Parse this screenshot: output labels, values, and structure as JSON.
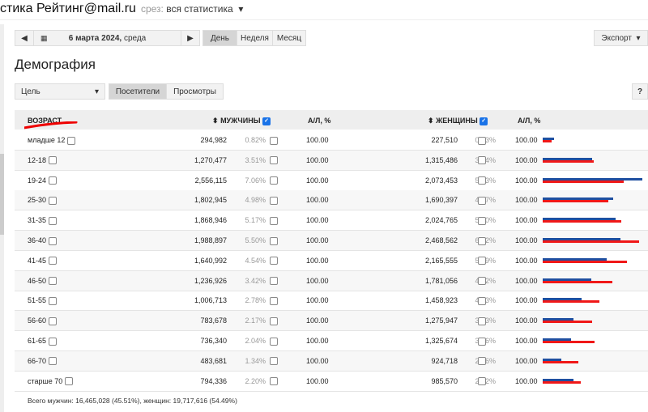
{
  "header": {
    "title": "стика Рейтинг@mail.ru",
    "slice_label": "срез:",
    "slice_value": "вся статистика",
    "slice_arrow": "▾"
  },
  "toolbar": {
    "prev": "◀",
    "date": "6 марта 2024,",
    "weekday": "среда",
    "next": "▶",
    "periods": [
      "День",
      "Неделя",
      "Месяц"
    ],
    "active_period": "День",
    "export": "Экспорт",
    "export_arrow": "▾"
  },
  "page_title": "Демография",
  "filters": {
    "goal": "Цель",
    "goal_arrow": "▾",
    "tabs": [
      "Посетители",
      "Просмотры"
    ],
    "active_tab": "Посетители",
    "help": "?"
  },
  "table": {
    "headers": {
      "age": "ВОЗРАСТ",
      "men": "МУЖЧИНЫ",
      "men_al": "А/Л, %",
      "women": "ЖЕНЩИНЫ",
      "women_al": "А/Л, %",
      "sort_icon": "⬍"
    },
    "colors": {
      "men": "#1f4fa0",
      "women": "#f01818"
    },
    "rows": [
      {
        "age": "младше 12",
        "men": "294,982",
        "men_pct": "0.82%",
        "men_al": "100.00",
        "women": "227,510",
        "women_pct": "0.63%",
        "women_al": "100.00",
        "m": 294982,
        "w": 227510
      },
      {
        "age": "12-18",
        "men": "1,270,477",
        "men_pct": "3.51%",
        "men_al": "100.00",
        "women": "1,315,486",
        "women_pct": "3.64%",
        "women_al": "100.00",
        "m": 1270477,
        "w": 1315486
      },
      {
        "age": "19-24",
        "men": "2,556,115",
        "men_pct": "7.06%",
        "men_al": "100.00",
        "women": "2,073,453",
        "women_pct": "5.73%",
        "women_al": "100.00",
        "m": 2556115,
        "w": 2073453
      },
      {
        "age": "25-30",
        "men": "1,802,945",
        "men_pct": "4.98%",
        "men_al": "100.00",
        "women": "1,690,397",
        "women_pct": "4.67%",
        "women_al": "100.00",
        "m": 1802945,
        "w": 1690397
      },
      {
        "age": "31-35",
        "men": "1,868,946",
        "men_pct": "5.17%",
        "men_al": "100.00",
        "women": "2,024,765",
        "women_pct": "5.60%",
        "women_al": "100.00",
        "m": 1868946,
        "w": 2024765
      },
      {
        "age": "36-40",
        "men": "1,988,897",
        "men_pct": "5.50%",
        "men_al": "100.00",
        "women": "2,468,562",
        "women_pct": "6.82%",
        "women_al": "100.00",
        "m": 1988897,
        "w": 2468562
      },
      {
        "age": "41-45",
        "men": "1,640,992",
        "men_pct": "4.54%",
        "men_al": "100.00",
        "women": "2,165,555",
        "women_pct": "5.99%",
        "women_al": "100.00",
        "m": 1640992,
        "w": 2165555
      },
      {
        "age": "46-50",
        "men": "1,236,926",
        "men_pct": "3.42%",
        "men_al": "100.00",
        "women": "1,781,056",
        "women_pct": "4.92%",
        "women_al": "100.00",
        "m": 1236926,
        "w": 1781056
      },
      {
        "age": "51-55",
        "men": "1,006,713",
        "men_pct": "2.78%",
        "men_al": "100.00",
        "women": "1,458,923",
        "women_pct": "4.03%",
        "women_al": "100.00",
        "m": 1006713,
        "w": 1458923
      },
      {
        "age": "56-60",
        "men": "783,678",
        "men_pct": "2.17%",
        "men_al": "100.00",
        "women": "1,275,947",
        "women_pct": "3.53%",
        "women_al": "100.00",
        "m": 783678,
        "w": 1275947
      },
      {
        "age": "61-65",
        "men": "736,340",
        "men_pct": "2.04%",
        "men_al": "100.00",
        "women": "1,325,674",
        "women_pct": "3.66%",
        "women_al": "100.00",
        "m": 736340,
        "w": 1325674
      },
      {
        "age": "66-70",
        "men": "483,681",
        "men_pct": "1.34%",
        "men_al": "100.00",
        "women": "924,718",
        "women_pct": "2.56%",
        "women_al": "100.00",
        "m": 483681,
        "w": 924718
      },
      {
        "age": "старше 70",
        "men": "794,336",
        "men_pct": "2.20%",
        "men_al": "100.00",
        "women": "985,570",
        "women_pct": "2.72%",
        "women_al": "100.00",
        "m": 794336,
        "w": 985570
      }
    ]
  },
  "footer": "Всего мужчин: 16,465,028 (45.51%), женщин: 19,717,616 (54.49%)"
}
